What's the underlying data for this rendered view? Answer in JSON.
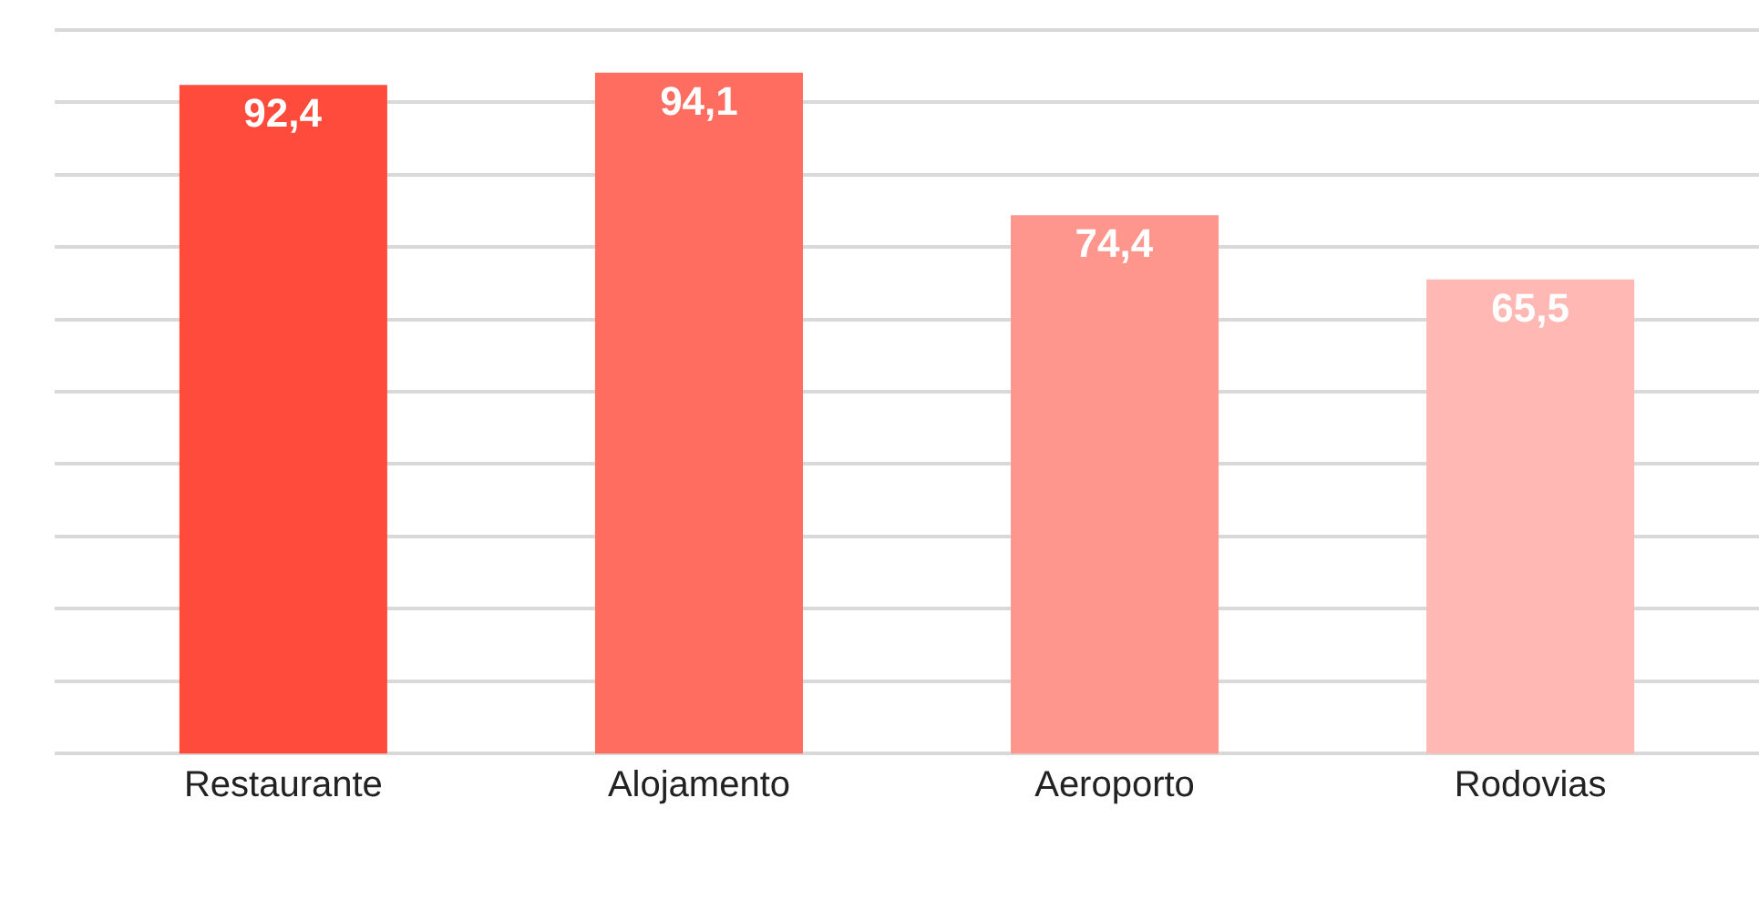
{
  "chart_data": {
    "type": "bar",
    "categories": [
      "Restaurante",
      "Alojamento",
      "Aeroporto",
      "Rodovias"
    ],
    "values": [
      92.4,
      94.1,
      74.4,
      65.5
    ],
    "colors": [
      "#ff4b3b",
      "#ff6d61",
      "#ff968d",
      "#ffb8b3"
    ],
    "value_labels": [
      "92,4",
      "94,1",
      "74,4",
      "65,5"
    ],
    "yticks": [
      {
        "value": 0,
        "label": null
      },
      {
        "value": 10,
        "label": null
      },
      {
        "value": 20,
        "label": null
      },
      {
        "value": 30,
        "label": null
      },
      {
        "value": 40,
        "label": null
      },
      {
        "value": 50,
        "label": null
      },
      {
        "value": 60,
        "label": null
      },
      {
        "value": 70,
        "label": null
      },
      {
        "value": 80,
        "label": null
      },
      {
        "value": 90,
        "label": null
      },
      {
        "value": 100,
        "label": null
      }
    ],
    "tick_labels": "x",
    "grid": "y",
    "legend": false
  }
}
